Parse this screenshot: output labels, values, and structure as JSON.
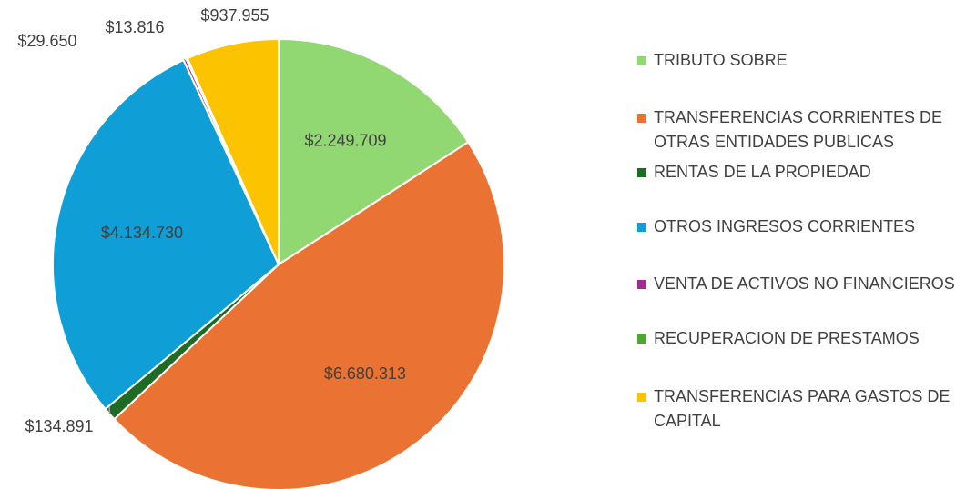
{
  "chart_data": {
    "type": "pie",
    "categories": [
      "TRIBUTO SOBRE",
      "TRANSFERENCIAS CORRIENTES DE OTRAS ENTIDADES PUBLICAS",
      "RENTAS DE LA PROPIEDAD",
      "OTROS INGRESOS CORRIENTES",
      "VENTA DE ACTIVOS NO FINANCIEROS",
      "RECUPERACION DE PRESTAMOS",
      "TRANSFERENCIAS PARA GASTOS DE CAPITAL"
    ],
    "values": [
      2249709,
      6680313,
      134891,
      4134730,
      29650,
      13816,
      937955
    ],
    "value_labels": [
      "$2.249.709",
      "$6.680.313",
      "$134.891",
      "$4.134.730",
      "$29.650",
      "$13.816",
      "$937.955"
    ],
    "colors": [
      "#92d872",
      "#ea7334",
      "#1e6b26",
      "#0f9ed5",
      "#a02b93",
      "#4ea72e",
      "#fbc300"
    ],
    "legend": "right"
  }
}
